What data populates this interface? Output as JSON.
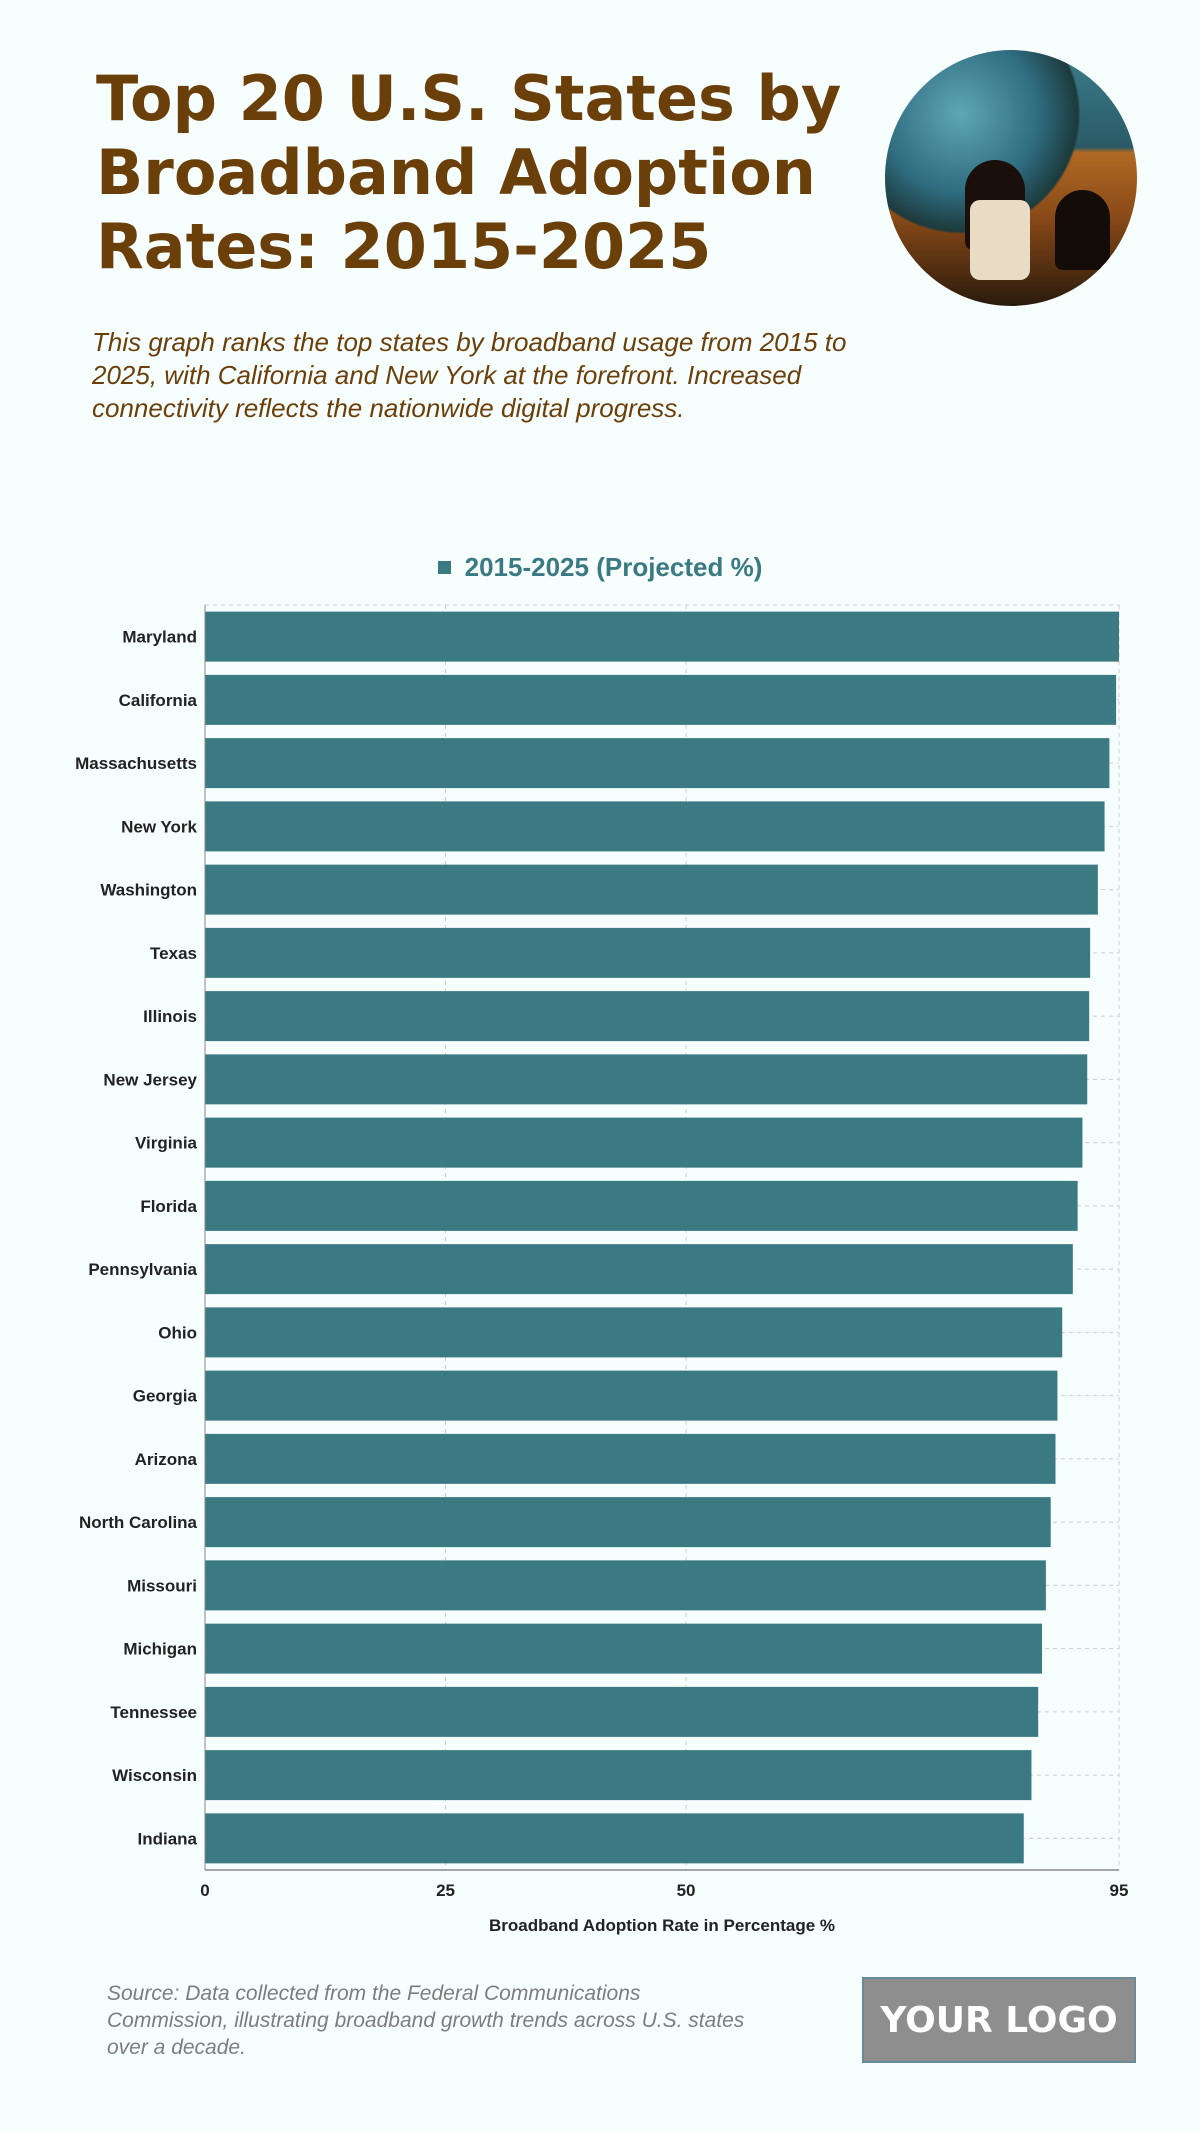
{
  "header": {
    "title": "Top 20 U.S. States by Broadband Adoption Rates: 2015-2025",
    "subtitle": "This graph ranks the top states by broadband usage from 2015 to 2025, with California and New York at the forefront. Increased connectivity reflects the nationwide digital progress."
  },
  "footer": {
    "source": "Source: Data collected from the Federal Communications Commission, illustrating broadband growth trends across U.S. states over a decade.",
    "logo": "YOUR LOGO"
  },
  "chart_data": {
    "type": "bar",
    "orientation": "horizontal",
    "categories": [
      "Maryland",
      "California",
      "Massachusetts",
      "New York",
      "Washington",
      "Texas",
      "Illinois",
      "New Jersey",
      "Virginia",
      "Florida",
      "Pennsylvania",
      "Ohio",
      "Georgia",
      "Arizona",
      "North Carolina",
      "Missouri",
      "Michigan",
      "Tennessee",
      "Wisconsin",
      "Indiana"
    ],
    "series": [
      {
        "name": "2015-2025 (Projected %)",
        "color": "#3b7a82",
        "values": [
          95.0,
          94.7,
          94.0,
          93.5,
          92.8,
          92.0,
          91.9,
          91.7,
          91.2,
          90.7,
          90.2,
          89.1,
          88.6,
          88.4,
          87.9,
          87.4,
          87.0,
          86.6,
          85.9,
          85.1
        ]
      }
    ],
    "xlabel": "Broadband Adoption Rate in Percentage %",
    "ylabel": "",
    "xlim": [
      0,
      95
    ],
    "xticks": [
      0,
      25,
      50,
      95
    ],
    "grid": true,
    "legend": "top-center"
  }
}
